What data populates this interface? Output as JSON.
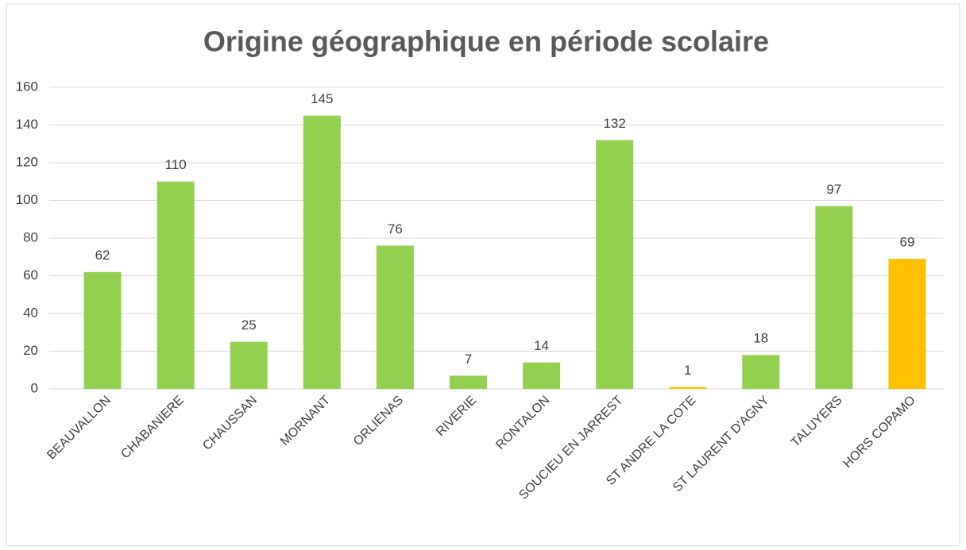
{
  "chart_data": {
    "type": "bar",
    "title": "Origine géographique en période scolaire",
    "categories": [
      "BEAUVALLON",
      "CHABANIERE",
      "CHAUSSAN",
      "MORNANT",
      "ORLIENAS",
      "RIVERIE",
      "RONTALON",
      "SOUCIEU EN JARREST",
      "ST ANDRE LA COTE",
      "ST LAURENT D'AGNY",
      "TALUYERS",
      "HORS COPAMO"
    ],
    "values": [
      62,
      110,
      25,
      145,
      76,
      7,
      14,
      132,
      1,
      18,
      97,
      69
    ],
    "colors": [
      "#92d050",
      "#92d050",
      "#92d050",
      "#92d050",
      "#92d050",
      "#92d050",
      "#92d050",
      "#92d050",
      "#ffc000",
      "#92d050",
      "#92d050",
      "#ffc000"
    ],
    "ylim": [
      0,
      160
    ],
    "yticks": [
      0,
      20,
      40,
      60,
      80,
      100,
      120,
      140,
      160
    ],
    "grid": true
  }
}
